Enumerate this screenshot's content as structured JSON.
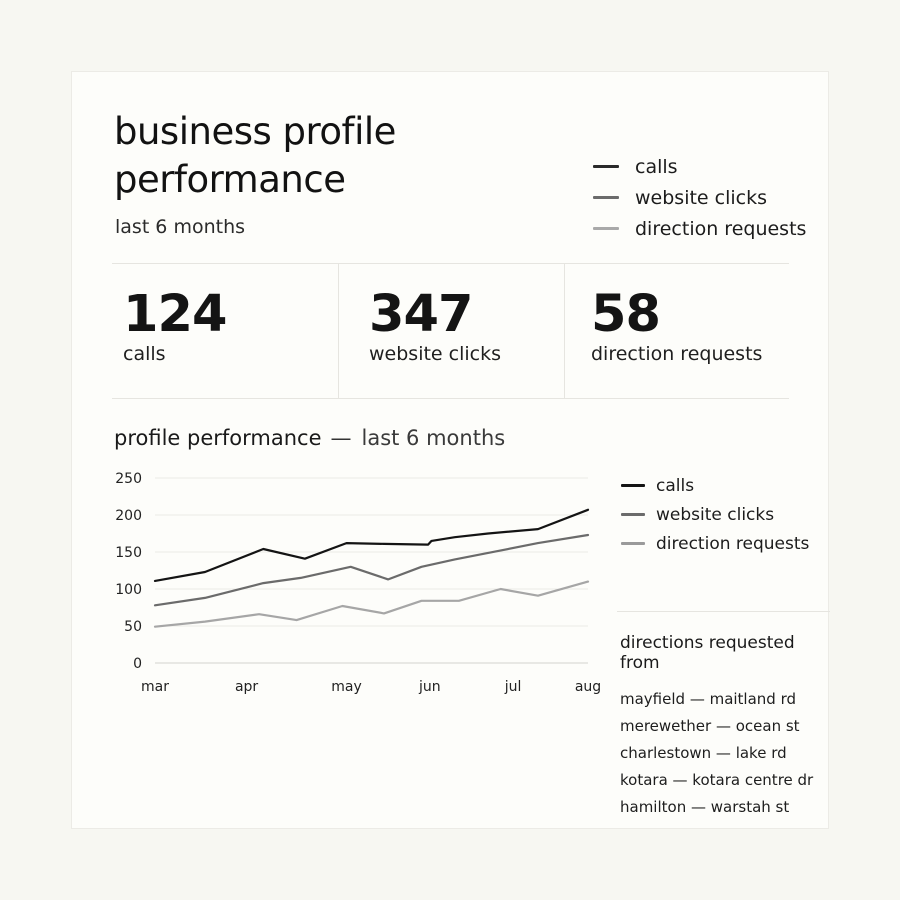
{
  "header": {
    "title_line1": "business profile",
    "title_line2": "performance",
    "subtitle": "last 6 months"
  },
  "legend": [
    {
      "label": "calls",
      "color": "#2a2a2a"
    },
    {
      "label": "website clicks",
      "color": "#6b6b6b"
    },
    {
      "label": "direction requests",
      "color": "#a9a9a9"
    }
  ],
  "stats": [
    {
      "value": "124",
      "label": "calls"
    },
    {
      "value": "347",
      "label": "website clicks"
    },
    {
      "value": "58",
      "label": "direction requests"
    }
  ],
  "chart_title": {
    "main": "profile performance",
    "separator": "—",
    "sub": "last 6 months"
  },
  "chart_legend": [
    {
      "label": "calls",
      "color": "#141414"
    },
    {
      "label": "website clicks",
      "color": "#6b6b6b"
    },
    {
      "label": "direction requests",
      "color": "#9a9a9a"
    }
  ],
  "chart_data": {
    "type": "line",
    "title": "profile performance — last 6 months",
    "xlabel": "",
    "ylabel": "",
    "ylim": [
      0,
      250
    ],
    "yticks": [
      0,
      50,
      100,
      150,
      200,
      250
    ],
    "grid": true,
    "legend_position": "right",
    "x_labels": [
      "mar",
      "apr",
      "may",
      "jun",
      "jul",
      "aug"
    ],
    "x_label_positions": [
      0,
      1.1,
      2.3,
      3.3,
      4.3,
      5.2
    ],
    "x_range": [
      0,
      5.2
    ],
    "series": [
      {
        "name": "calls",
        "color": "#141414",
        "x": [
          0,
          0.6,
          1.3,
          1.8,
          2.3,
          2.75,
          3.28,
          3.32,
          3.6,
          4.0,
          4.6,
          5.2
        ],
        "y": [
          111,
          123,
          154,
          141,
          162,
          161,
          160,
          165,
          170,
          175,
          181,
          207
        ]
      },
      {
        "name": "website clicks",
        "color": "#6b6b6b",
        "x": [
          0,
          0.6,
          1.3,
          1.75,
          2.35,
          2.8,
          3.2,
          3.6,
          4.1,
          4.6,
          5.2
        ],
        "y": [
          78,
          88,
          108,
          115,
          130,
          113,
          130,
          140,
          151,
          162,
          173
        ]
      },
      {
        "name": "direction requests",
        "color": "#a6a6a6",
        "x": [
          0,
          0.6,
          1.25,
          1.7,
          2.25,
          2.75,
          3.2,
          3.65,
          4.15,
          4.6,
          5.2
        ],
        "y": [
          49,
          56,
          66,
          58,
          77,
          67,
          84,
          84,
          100,
          91,
          110
        ]
      }
    ]
  },
  "directions": {
    "heading": "directions requested from",
    "items": [
      "mayfield — maitland rd",
      "merewether — ocean st",
      "charlestown — lake rd",
      "kotara — kotara centre dr",
      "hamilton — warstah st"
    ]
  }
}
